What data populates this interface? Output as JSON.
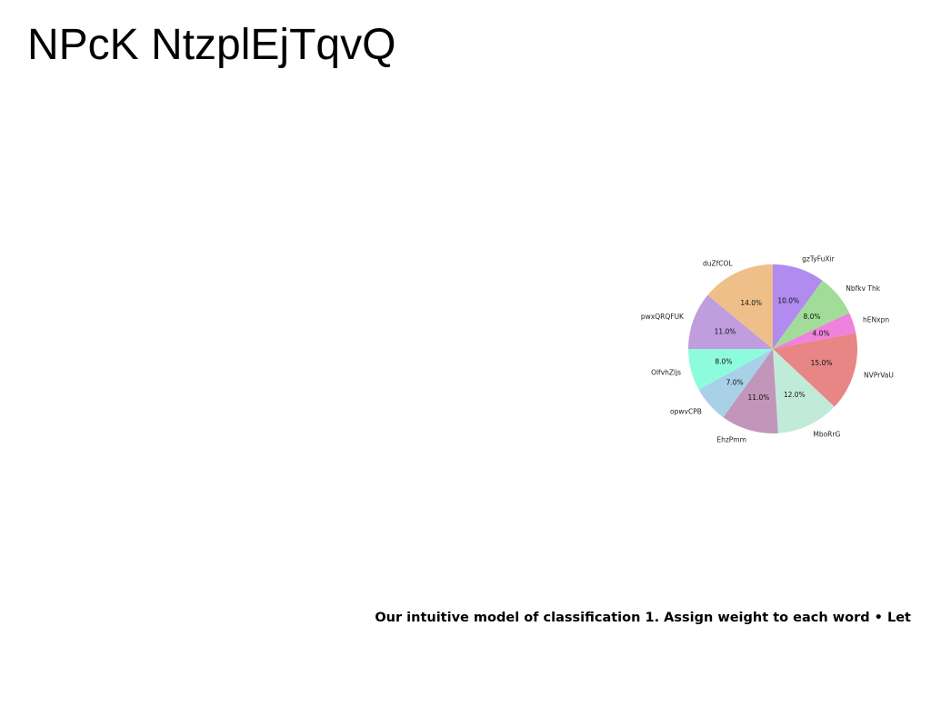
{
  "page": {
    "title": "NPcK NtzplEjTqvQ",
    "caption": "Our intuitive model of classification 1. Assign weight to each word • Let"
  },
  "chart_data": {
    "type": "pie",
    "title": "",
    "labels": [
      "gzTyFuXir",
      "Nbfkv Thk",
      "hENxpn",
      "NVPrVaU",
      "MboRrG",
      "EhzPmm",
      "opwvCPB",
      "OlfvhZljs",
      "pwxQRQFUK",
      "duZfCOL"
    ],
    "values": [
      10.0,
      8.0,
      4.0,
      15.0,
      12.0,
      11.0,
      7.0,
      8.0,
      11.0,
      14.0
    ],
    "value_labels": [
      "10.0%",
      "8.0%",
      "4.0%",
      "15.0%",
      "12.0%",
      "11.0%",
      "7.0%",
      "8.0%",
      "11.0%",
      "14.0%"
    ],
    "colors": [
      "#b18bef",
      "#a1dd98",
      "#ee82dc",
      "#e88585",
      "#c1ebd9",
      "#c295bb",
      "#a8d1e8",
      "#8dfcdd",
      "#bf9ddf",
      "#eebf89"
    ],
    "start_angle_deg": 90,
    "direction": "clockwise"
  }
}
